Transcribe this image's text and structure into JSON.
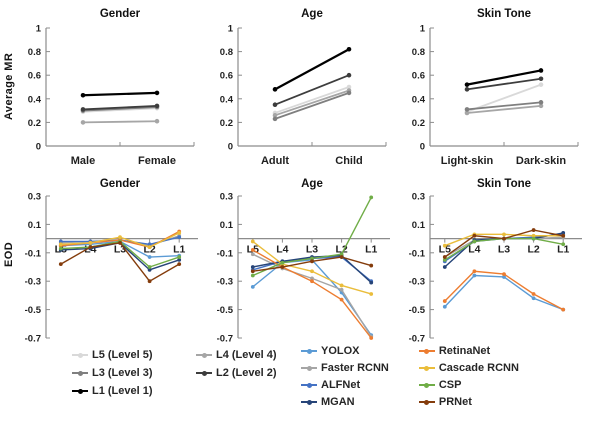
{
  "figure": {
    "background": "#ffffff",
    "axis_color": "#8c8c8c",
    "text_color": "#1f1f1f",
    "row1_ylabel": "Average MR",
    "row2_ylabel": "EOD"
  },
  "chart_data": [
    {
      "id": "mr-gender",
      "type": "line",
      "row": "top",
      "title": "Gender",
      "ylabel": "Average MR",
      "categories": [
        "Male",
        "Female"
      ],
      "ylim": [
        0,
        1
      ],
      "yticks": [
        1,
        0.8,
        0.6,
        0.4,
        0.2,
        0
      ],
      "grid": false,
      "legend_position": "bottom-left",
      "series": [
        {
          "name": "L5",
          "color": "#d9d9d9",
          "values": [
            0.29,
            0.32
          ]
        },
        {
          "name": "L4",
          "color": "#a6a6a6",
          "values": [
            0.2,
            0.21
          ]
        },
        {
          "name": "L3",
          "color": "#7f7f7f",
          "values": [
            0.3,
            0.33
          ]
        },
        {
          "name": "L2",
          "color": "#3d3d3d",
          "values": [
            0.31,
            0.34
          ]
        },
        {
          "name": "L1",
          "color": "#000000",
          "values": [
            0.43,
            0.45
          ]
        }
      ]
    },
    {
      "id": "mr-age",
      "type": "line",
      "row": "top",
      "title": "Age",
      "categories": [
        "Adult",
        "Child"
      ],
      "ylim": [
        0,
        1
      ],
      "yticks": [
        1,
        0.8,
        0.6,
        0.4,
        0.2,
        0
      ],
      "grid": false,
      "series": [
        {
          "name": "L5",
          "color": "#d9d9d9",
          "values": [
            0.28,
            0.5
          ]
        },
        {
          "name": "L4",
          "color": "#a6a6a6",
          "values": [
            0.26,
            0.47
          ]
        },
        {
          "name": "L3",
          "color": "#7f7f7f",
          "values": [
            0.23,
            0.45
          ]
        },
        {
          "name": "L2",
          "color": "#3d3d3d",
          "values": [
            0.35,
            0.6
          ]
        },
        {
          "name": "L1",
          "color": "#000000",
          "values": [
            0.48,
            0.82
          ]
        }
      ]
    },
    {
      "id": "mr-skin",
      "type": "line",
      "row": "top",
      "title": "Skin Tone",
      "categories": [
        "Light-skin",
        "Dark-skin"
      ],
      "ylim": [
        0,
        1
      ],
      "yticks": [
        1,
        0.8,
        0.6,
        0.4,
        0.2,
        0
      ],
      "grid": false,
      "series": [
        {
          "name": "L5",
          "color": "#d9d9d9",
          "values": [
            0.29,
            0.52
          ]
        },
        {
          "name": "L4",
          "color": "#a6a6a6",
          "values": [
            0.28,
            0.34
          ]
        },
        {
          "name": "L3",
          "color": "#7f7f7f",
          "values": [
            0.31,
            0.37
          ]
        },
        {
          "name": "L2",
          "color": "#3d3d3d",
          "values": [
            0.48,
            0.57
          ]
        },
        {
          "name": "L1",
          "color": "#000000",
          "values": [
            0.52,
            0.64
          ]
        }
      ]
    },
    {
      "id": "eod-gender",
      "type": "line",
      "row": "bottom",
      "title": "Gender",
      "ylabel": "EOD",
      "categories": [
        "L5",
        "L4",
        "L3",
        "L2",
        "L1"
      ],
      "ylim": [
        -0.7,
        0.3
      ],
      "yticks": [
        0.3,
        0.1,
        -0.1,
        -0.3,
        -0.5,
        -0.7
      ],
      "grid": false,
      "legend_position": "bottom-right",
      "series": [
        {
          "name": "YOLOX",
          "color": "#5b9bd5",
          "values": [
            -0.05,
            -0.04,
            -0.02,
            -0.13,
            -0.12
          ]
        },
        {
          "name": "Faster RCNN",
          "color": "#a5a5a5",
          "values": [
            -0.03,
            -0.02,
            -0.01,
            -0.05,
            0.02
          ]
        },
        {
          "name": "ALFNet",
          "color": "#4472c4",
          "values": [
            -0.02,
            -0.02,
            -0.01,
            -0.04,
            0.01
          ]
        },
        {
          "name": "MGAN",
          "color": "#264478",
          "values": [
            -0.08,
            -0.07,
            -0.03,
            -0.22,
            -0.15
          ]
        },
        {
          "name": "RetinaNet",
          "color": "#ed7d31",
          "values": [
            -0.05,
            -0.03,
            -0.01,
            -0.06,
            0.05
          ]
        },
        {
          "name": "Cascade RCNN",
          "color": "#eabd3b",
          "values": [
            -0.04,
            -0.03,
            0.01,
            -0.06,
            0.04
          ]
        },
        {
          "name": "CSP",
          "color": "#70ad47",
          "values": [
            -0.07,
            -0.06,
            -0.02,
            -0.2,
            -0.13
          ]
        },
        {
          "name": "PRNet",
          "color": "#843c0c",
          "values": [
            -0.18,
            -0.06,
            -0.03,
            -0.3,
            -0.18
          ]
        }
      ]
    },
    {
      "id": "eod-age",
      "type": "line",
      "row": "bottom",
      "title": "Age",
      "categories": [
        "L5",
        "L4",
        "L3",
        "L2",
        "L1"
      ],
      "ylim": [
        -0.7,
        0.3
      ],
      "yticks": [
        0.3,
        0.1,
        -0.1,
        -0.3,
        -0.5,
        -0.7
      ],
      "grid": false,
      "series": [
        {
          "name": "YOLOX",
          "color": "#5b9bd5",
          "values": [
            -0.34,
            -0.17,
            -0.15,
            -0.38,
            -0.68
          ]
        },
        {
          "name": "Faster RCNN",
          "color": "#a5a5a5",
          "values": [
            -0.11,
            -0.21,
            -0.28,
            -0.36,
            -0.69
          ]
        },
        {
          "name": "ALFNet",
          "color": "#4472c4",
          "values": [
            -0.22,
            -0.16,
            -0.14,
            -0.13,
            -0.3
          ]
        },
        {
          "name": "MGAN",
          "color": "#264478",
          "values": [
            -0.2,
            -0.16,
            -0.13,
            -0.12,
            -0.31
          ]
        },
        {
          "name": "RetinaNet",
          "color": "#ed7d31",
          "values": [
            -0.08,
            -0.2,
            -0.3,
            -0.43,
            -0.7
          ]
        },
        {
          "name": "Cascade RCNN",
          "color": "#eabd3b",
          "values": [
            -0.02,
            -0.18,
            -0.23,
            -0.33,
            -0.39
          ]
        },
        {
          "name": "CSP",
          "color": "#70ad47",
          "values": [
            -0.26,
            -0.17,
            -0.14,
            -0.11,
            0.29
          ]
        },
        {
          "name": "PRNet",
          "color": "#843c0c",
          "values": [
            -0.23,
            -0.2,
            -0.16,
            -0.13,
            -0.19
          ]
        }
      ]
    },
    {
      "id": "eod-skin",
      "type": "line",
      "row": "bottom",
      "title": "Skin Tone",
      "categories": [
        "L5",
        "L4",
        "L3",
        "L2",
        "L1"
      ],
      "ylim": [
        -0.7,
        0.3
      ],
      "yticks": [
        0.3,
        0.1,
        -0.1,
        -0.3,
        -0.5,
        -0.7
      ],
      "grid": false,
      "series": [
        {
          "name": "YOLOX",
          "color": "#5b9bd5",
          "values": [
            -0.48,
            -0.26,
            -0.27,
            -0.42,
            -0.5
          ]
        },
        {
          "name": "Faster RCNN",
          "color": "#a5a5a5",
          "values": [
            -0.13,
            -0.01,
            0.0,
            0.0,
            0.01
          ]
        },
        {
          "name": "ALFNet",
          "color": "#4472c4",
          "values": [
            -0.16,
            -0.02,
            0.0,
            0.01,
            0.03
          ]
        },
        {
          "name": "MGAN",
          "color": "#264478",
          "values": [
            -0.2,
            -0.01,
            0.0,
            0.0,
            0.04
          ]
        },
        {
          "name": "RetinaNet",
          "color": "#ed7d31",
          "values": [
            -0.44,
            -0.23,
            -0.25,
            -0.39,
            -0.5
          ]
        },
        {
          "name": "Cascade RCNN",
          "color": "#eabd3b",
          "values": [
            -0.05,
            0.03,
            0.03,
            0.02,
            0.02
          ]
        },
        {
          "name": "CSP",
          "color": "#70ad47",
          "values": [
            -0.15,
            -0.02,
            0.0,
            0.0,
            -0.04
          ]
        },
        {
          "name": "PRNet",
          "color": "#843c0c",
          "values": [
            -0.13,
            0.02,
            0.0,
            0.06,
            0.02
          ]
        }
      ]
    }
  ],
  "legends": {
    "levels": [
      {
        "label": "L5 (Level 5)",
        "color": "#d9d9d9"
      },
      {
        "label": "L4 (Level 4)",
        "color": "#a6a6a6"
      },
      {
        "label": "L3 (Level 3)",
        "color": "#7f7f7f"
      },
      {
        "label": "L2 (Level 2)",
        "color": "#3d3d3d"
      },
      {
        "label": "L1 (Level 1)",
        "color": "#000000"
      }
    ],
    "models": [
      {
        "label": "YOLOX",
        "color": "#5b9bd5"
      },
      {
        "label": "Faster RCNN",
        "color": "#a5a5a5"
      },
      {
        "label": "ALFNet",
        "color": "#4472c4"
      },
      {
        "label": "MGAN",
        "color": "#264478"
      },
      {
        "label": "RetinaNet",
        "color": "#ed7d31"
      },
      {
        "label": "Cascade RCNN",
        "color": "#eabd3b"
      },
      {
        "label": "CSP",
        "color": "#70ad47"
      },
      {
        "label": "PRNet",
        "color": "#843c0c"
      }
    ]
  }
}
